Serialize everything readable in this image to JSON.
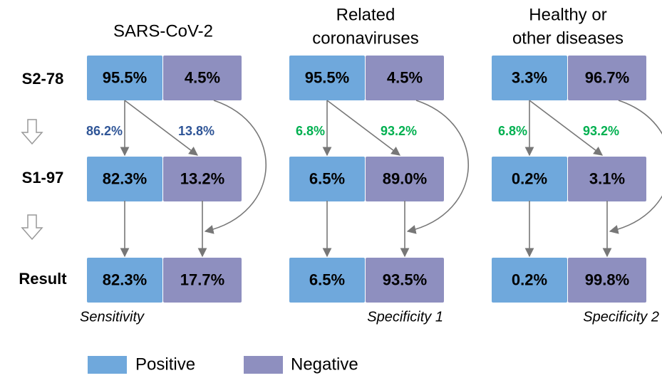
{
  "row_labels": [
    "S2-78",
    "S1-97",
    "Result"
  ],
  "columns": [
    {
      "title": [
        "SARS-CoV-2"
      ],
      "rows": [
        [
          "95.5%",
          "4.5%"
        ],
        [
          "82.3%",
          "13.2%"
        ],
        [
          "82.3%",
          "17.7%"
        ]
      ],
      "transitions": [
        "86.2%",
        "13.8%"
      ],
      "transition_color": "#2f5597",
      "footer": "Sensitivity"
    },
    {
      "title": [
        "Related",
        "coronaviruses"
      ],
      "rows": [
        [
          "95.5%",
          "4.5%"
        ],
        [
          "6.5%",
          "89.0%"
        ],
        [
          "6.5%",
          "93.5%"
        ]
      ],
      "transitions": [
        "6.8%",
        "93.2%"
      ],
      "transition_color": "#00b050",
      "footer": "Specificity 1"
    },
    {
      "title": [
        "Healthy or",
        "other diseases"
      ],
      "rows": [
        [
          "3.3%",
          "96.7%"
        ],
        [
          "0.2%",
          "3.1%"
        ],
        [
          "0.2%",
          "99.8%"
        ]
      ],
      "transitions": [
        "6.8%",
        "93.2%"
      ],
      "transition_color": "#00b050",
      "footer": "Specificity 2"
    }
  ],
  "colors": [
    "#6fa8dc",
    "#8e8fbf"
  ],
  "legend": [
    "Positive",
    "Negative"
  ]
}
